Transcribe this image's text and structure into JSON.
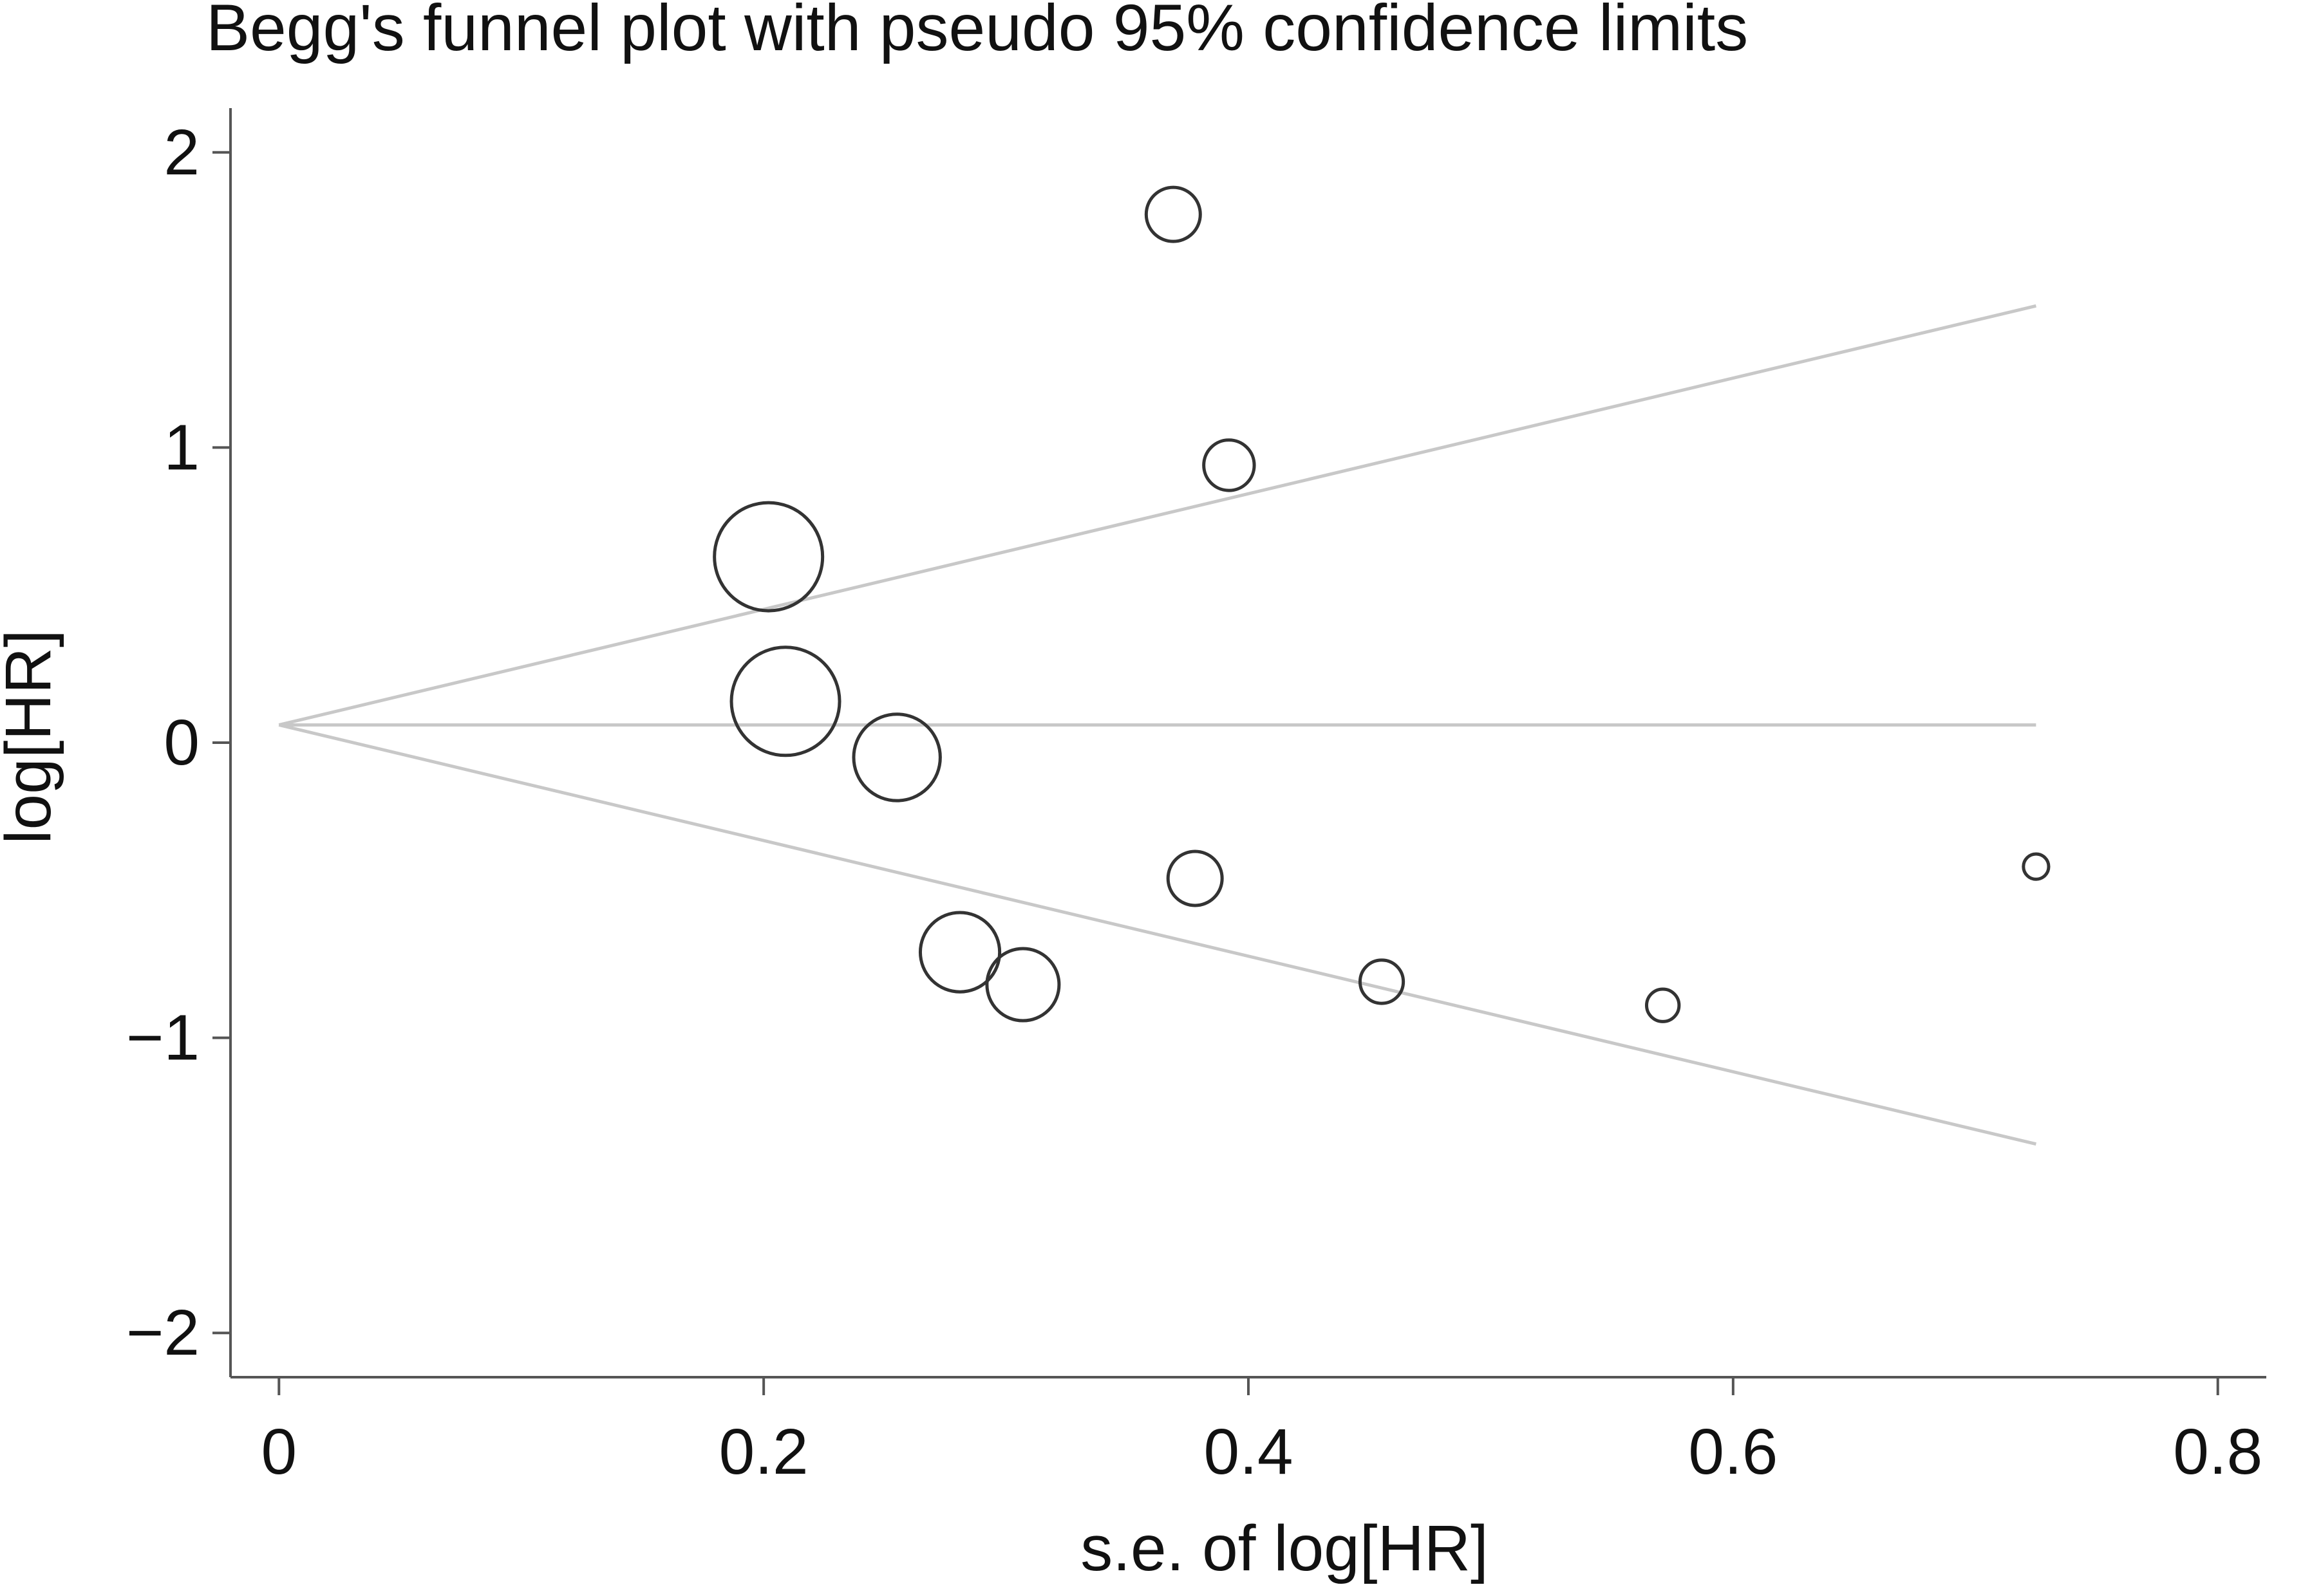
{
  "chart_data": {
    "type": "scatter",
    "title": "Begg's funnel plot with pseudo 95% confidence limits",
    "xlabel": "s.e. of log[HR]",
    "ylabel": "log[HR]",
    "xlim": [
      -0.02,
      0.82
    ],
    "ylim": [
      -2.15,
      2.15
    ],
    "x_ticks": [
      0,
      0.2,
      0.4,
      0.6,
      0.8
    ],
    "x_tick_labels": [
      "0",
      "0.2",
      "0.4",
      "0.6",
      "0.8"
    ],
    "y_ticks": [
      2,
      1,
      0,
      -1,
      -2
    ],
    "y_tick_labels": [
      "2",
      "1",
      "0",
      "−1",
      "−2"
    ],
    "grid": false,
    "pooled_estimate": 0.06,
    "se_max": 0.725,
    "confidence_limits": {
      "upper_end": 1.48,
      "lower_end": -1.36
    },
    "points": [
      {
        "x": 0.202,
        "y": 0.63,
        "size": 3.0
      },
      {
        "x": 0.209,
        "y": 0.14,
        "size": 3.0
      },
      {
        "x": 0.255,
        "y": -0.05,
        "size": 2.4
      },
      {
        "x": 0.281,
        "y": -0.71,
        "size": 2.2
      },
      {
        "x": 0.307,
        "y": -0.82,
        "size": 2.0
      },
      {
        "x": 0.369,
        "y": 1.79,
        "size": 1.5
      },
      {
        "x": 0.378,
        "y": -0.46,
        "size": 1.5
      },
      {
        "x": 0.392,
        "y": 0.94,
        "size": 1.4
      },
      {
        "x": 0.455,
        "y": -0.81,
        "size": 1.2
      },
      {
        "x": 0.571,
        "y": -0.89,
        "size": 0.9
      },
      {
        "x": 0.725,
        "y": -0.42,
        "size": 0.7
      }
    ]
  }
}
